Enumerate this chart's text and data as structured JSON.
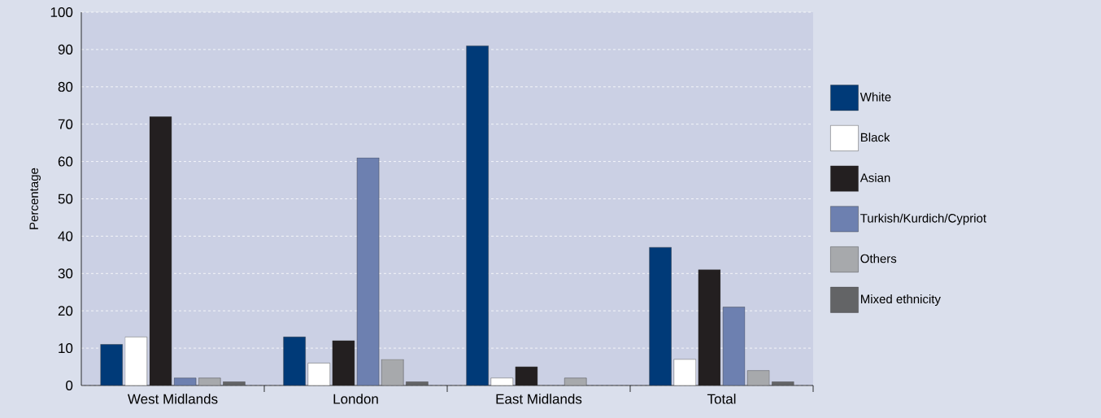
{
  "chart_data": {
    "type": "bar",
    "ylabel": "Percentage",
    "categories": [
      "West Midlands",
      "London",
      "East Midlands",
      "Total"
    ],
    "series": [
      {
        "name": "White",
        "color": "#003a78",
        "values": [
          11,
          13,
          91,
          37
        ]
      },
      {
        "name": "Black",
        "color": "#ffffff",
        "values": [
          13,
          6,
          2,
          7
        ]
      },
      {
        "name": "Asian",
        "color": "#231f20",
        "values": [
          72,
          12,
          5,
          31
        ]
      },
      {
        "name": "Turkish/Kurdich/Cypriot",
        "color": "#6d80b0",
        "values": [
          2,
          61,
          null,
          21
        ]
      },
      {
        "name": "Others",
        "color": "#a7a9ac",
        "values": [
          2,
          7,
          2,
          4
        ]
      },
      {
        "name": "Mixed ethnicity",
        "color": "#636466",
        "values": [
          1,
          1,
          null,
          1
        ]
      }
    ],
    "ylim": [
      0,
      100
    ],
    "yticks": [
      0,
      10,
      20,
      30,
      40,
      50,
      60,
      70,
      80,
      90,
      100
    ],
    "grid": "y",
    "legend": "right"
  }
}
